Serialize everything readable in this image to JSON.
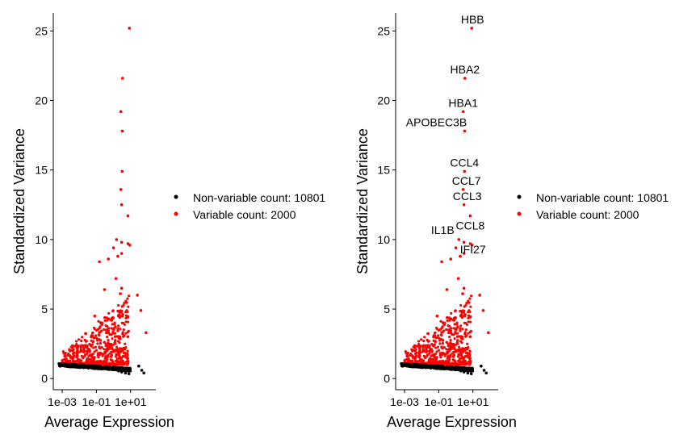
{
  "chart_data": [
    {
      "type": "scatter",
      "title": "",
      "xlabel": "Average Expression",
      "ylabel": "Standardized Variance",
      "x_scale": "log10",
      "xlim": [
        0.0003,
        300
      ],
      "ylim": [
        -0.8,
        26.3
      ],
      "x_ticks": [
        {
          "value": 0.001,
          "label": "1e-03"
        },
        {
          "value": 0.1,
          "label": "1e-01"
        },
        {
          "value": 10,
          "label": "1e+01"
        }
      ],
      "y_ticks": [
        {
          "value": 0,
          "label": "0"
        },
        {
          "value": 5,
          "label": "5"
        },
        {
          "value": 10,
          "label": "10"
        },
        {
          "value": 15,
          "label": "15"
        },
        {
          "value": 20,
          "label": "20"
        },
        {
          "value": 25,
          "label": "25"
        }
      ],
      "grid": false,
      "legend_position": "right",
      "series": [
        {
          "name": "Non-variable count: 10801",
          "color": "#000000",
          "points": [
            [
              0.0007,
              1.05
            ],
            [
              0.001,
              1.0
            ],
            [
              0.002,
              0.98
            ],
            [
              0.004,
              0.95
            ],
            [
              0.008,
              0.93
            ],
            [
              0.015,
              0.9
            ],
            [
              0.03,
              0.88
            ],
            [
              0.06,
              0.85
            ],
            [
              0.12,
              0.82
            ],
            [
              0.25,
              0.78
            ],
            [
              0.5,
              0.72
            ],
            [
              1.0,
              0.65
            ],
            [
              2.0,
              0.55
            ],
            [
              3.0,
              0.48
            ],
            [
              5.0,
              0.4
            ],
            [
              8.0,
              0.35
            ],
            [
              30,
              0.9
            ],
            [
              45,
              0.6
            ],
            [
              60,
              0.4
            ]
          ]
        },
        {
          "name": "Variable count: 2000",
          "color": "#ff0000",
          "points": [
            [
              8.5,
              25.2
            ],
            [
              3.4,
              21.6
            ],
            [
              2.7,
              19.2
            ],
            [
              3.3,
              17.8
            ],
            [
              3.2,
              14.9
            ],
            [
              2.7,
              13.6
            ],
            [
              3.0,
              12.5
            ],
            [
              7.0,
              11.7
            ],
            [
              1.5,
              10.0
            ],
            [
              3.0,
              9.8
            ],
            [
              7.0,
              9.7
            ],
            [
              9.0,
              9.6
            ],
            [
              1.0,
              9.4
            ],
            [
              3.0,
              9.0
            ],
            [
              0.15,
              8.4
            ],
            [
              0.5,
              8.6
            ],
            [
              1.8,
              8.8
            ],
            [
              1.4,
              7.2
            ],
            [
              3.0,
              6.5
            ],
            [
              0.3,
              6.4
            ],
            [
              2.5,
              6.1
            ],
            [
              25,
              6.0
            ],
            [
              40,
              4.9
            ],
            [
              80,
              3.3
            ],
            [
              0.02,
              2.0
            ],
            [
              0.05,
              3.0
            ],
            [
              0.08,
              4.5
            ]
          ]
        }
      ],
      "annotations": []
    },
    {
      "type": "scatter",
      "title": "",
      "xlabel": "Average Expression",
      "ylabel": "Standardized Variance",
      "x_scale": "log10",
      "xlim": [
        0.0003,
        300
      ],
      "ylim": [
        -0.8,
        26.3
      ],
      "x_ticks": [
        {
          "value": 0.001,
          "label": "1e-03"
        },
        {
          "value": 0.1,
          "label": "1e-01"
        },
        {
          "value": 10,
          "label": "1e+01"
        }
      ],
      "y_ticks": [
        {
          "value": 0,
          "label": "0"
        },
        {
          "value": 5,
          "label": "5"
        },
        {
          "value": 10,
          "label": "10"
        },
        {
          "value": 15,
          "label": "15"
        },
        {
          "value": 20,
          "label": "20"
        },
        {
          "value": 25,
          "label": "25"
        }
      ],
      "grid": false,
      "legend_position": "right",
      "series": [
        {
          "name": "Non-variable count: 10801",
          "color": "#000000",
          "points": [
            [
              0.0007,
              1.05
            ],
            [
              0.001,
              1.0
            ],
            [
              0.002,
              0.98
            ],
            [
              0.004,
              0.95
            ],
            [
              0.008,
              0.93
            ],
            [
              0.015,
              0.9
            ],
            [
              0.03,
              0.88
            ],
            [
              0.06,
              0.85
            ],
            [
              0.12,
              0.82
            ],
            [
              0.25,
              0.78
            ],
            [
              0.5,
              0.72
            ],
            [
              1.0,
              0.65
            ],
            [
              2.0,
              0.55
            ],
            [
              3.0,
              0.48
            ],
            [
              5.0,
              0.4
            ],
            [
              8.0,
              0.35
            ],
            [
              30,
              0.9
            ],
            [
              45,
              0.6
            ],
            [
              60,
              0.4
            ]
          ]
        },
        {
          "name": "Variable count: 2000",
          "color": "#ff0000",
          "points": [
            [
              8.5,
              25.2
            ],
            [
              3.4,
              21.6
            ],
            [
              2.7,
              19.2
            ],
            [
              3.3,
              17.8
            ],
            [
              3.2,
              14.9
            ],
            [
              2.7,
              13.6
            ],
            [
              3.0,
              12.5
            ],
            [
              7.0,
              11.7
            ],
            [
              1.5,
              10.0
            ],
            [
              3.0,
              9.8
            ],
            [
              7.0,
              9.7
            ],
            [
              9.0,
              9.6
            ],
            [
              1.0,
              9.4
            ],
            [
              3.0,
              9.0
            ],
            [
              0.15,
              8.4
            ],
            [
              0.5,
              8.6
            ],
            [
              1.8,
              8.8
            ],
            [
              1.4,
              7.2
            ],
            [
              3.0,
              6.5
            ],
            [
              0.3,
              6.4
            ],
            [
              2.5,
              6.1
            ],
            [
              25,
              6.0
            ],
            [
              40,
              4.9
            ],
            [
              80,
              3.3
            ],
            [
              0.02,
              2.0
            ],
            [
              0.05,
              3.0
            ],
            [
              0.08,
              4.5
            ]
          ]
        }
      ],
      "annotations": [
        {
          "label": "HBB",
          "x": 8.5,
          "y": 25.2
        },
        {
          "label": "HBA2",
          "x": 3.4,
          "y": 21.6
        },
        {
          "label": "HBA1",
          "x": 2.7,
          "y": 19.2
        },
        {
          "label": "APOBEC3B",
          "x": 3.3,
          "y": 17.8
        },
        {
          "label": "CCL4",
          "x": 3.2,
          "y": 14.9
        },
        {
          "label": "CCL7",
          "x": 2.7,
          "y": 13.6
        },
        {
          "label": "CCL3",
          "x": 3.0,
          "y": 12.5
        },
        {
          "label": "CCL8",
          "x": 7.0,
          "y": 11.7
        },
        {
          "label": "IL1B",
          "x": 1.5,
          "y": 10.0
        },
        {
          "label": "IFI27",
          "x": 3.0,
          "y": 9.0
        }
      ]
    }
  ]
}
